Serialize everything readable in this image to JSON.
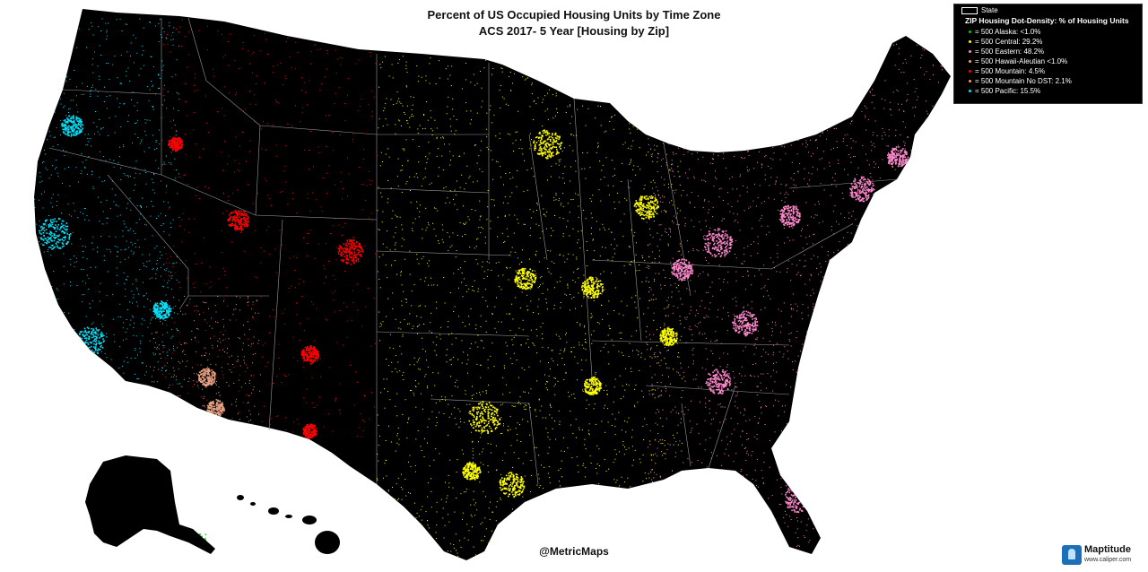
{
  "title": {
    "line1": "Percent of US Occupied Housing Units by Time Zone",
    "line2": "ACS 2017- 5 Year [Housing by Zip]"
  },
  "legend": {
    "state_label": "State",
    "title": "ZIP Housing Dot-Density: % of Housing Units",
    "items": [
      {
        "label": "= 500 Alaska: <1.0%",
        "color": "#00cc00"
      },
      {
        "label": "= 500 Central: 29.2%",
        "color": "#ffff00"
      },
      {
        "label": "= 500 Eastern: 48.2%",
        "color": "#ff88cc"
      },
      {
        "label": "= 500 Hawaii-Aleutian <1.0%",
        "color": "#f4a27a"
      },
      {
        "label": "= 500 Mountain: 4.5%",
        "color": "#ff0000"
      },
      {
        "label": "= 500 Mountain No DST: 2.1%",
        "color": "#e8a080"
      },
      {
        "label": "= 500 Pacific: 15.5%",
        "color": "#00e5ff"
      }
    ]
  },
  "credit": "@MetricMaps",
  "logo": {
    "name": "Maptitude",
    "url": "www.caliper.com"
  },
  "map": {
    "background_color": "#ffffff",
    "land_color": "#000000",
    "border_color": "#aaaaaa"
  }
}
